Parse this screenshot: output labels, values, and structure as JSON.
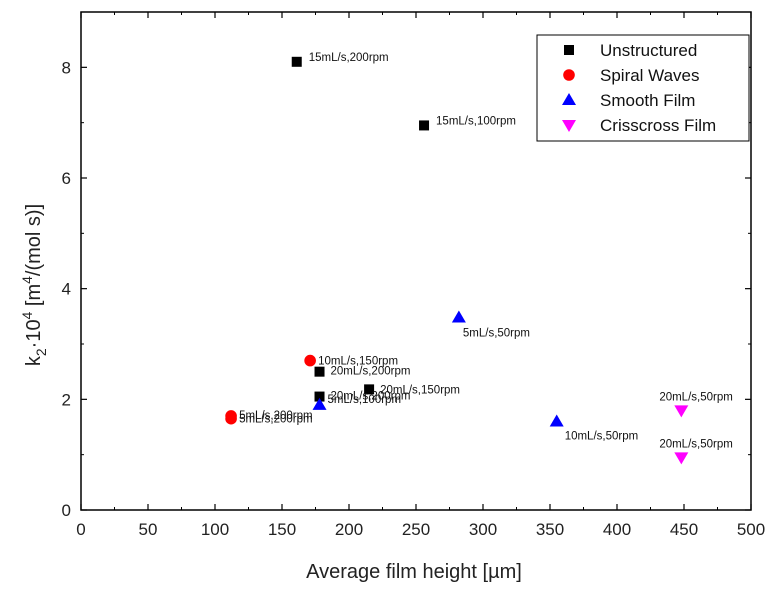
{
  "chart_data": {
    "type": "scatter",
    "xlabel": "Average film height [µm]",
    "ylabel": {
      "prefix": "k",
      "sub": "2",
      "middle": "·10",
      "sup1": "4",
      "open": " [m",
      "sup2": "4",
      "close": "/(mol s)]"
    },
    "xlim": [
      0,
      500
    ],
    "ylim": [
      0,
      9
    ],
    "x_ticks": [
      0,
      50,
      100,
      150,
      200,
      250,
      300,
      350,
      400,
      450,
      500
    ],
    "y_ticks": [
      0,
      2,
      4,
      6,
      8
    ],
    "grid": false,
    "legend_position": "top-right",
    "series": [
      {
        "name": "Unstructured",
        "marker": "square",
        "color": "#000000",
        "points": [
          {
            "x": 161,
            "y": 8.1,
            "label": "15mL/s,200rpm"
          },
          {
            "x": 256,
            "y": 6.95,
            "label": "15mL/s,100rpm"
          },
          {
            "x": 178,
            "y": 2.5,
            "label": "20mL/s,200rpm"
          },
          {
            "x": 215,
            "y": 2.18,
            "label": "20mL/s,150rpm"
          },
          {
            "x": 178,
            "y": 2.05,
            "label": "20mL/s,200rpm"
          }
        ]
      },
      {
        "name": "Spiral Waves",
        "marker": "circle",
        "color": "#ff0000",
        "points": [
          {
            "x": 171,
            "y": 2.7,
            "label": "10mL/s,150rpm"
          },
          {
            "x": 112,
            "y": 1.7,
            "label": "5mL/s,200rpm"
          },
          {
            "x": 112,
            "y": 1.65,
            "label": "5mL/s,200rpm"
          }
        ]
      },
      {
        "name": "Smooth Film",
        "marker": "triangle-up",
        "color": "#0000ff",
        "points": [
          {
            "x": 282,
            "y": 3.48,
            "label": "5mL/s,50rpm"
          },
          {
            "x": 178,
            "y": 1.9,
            "label": "5mL/s,100rpm"
          },
          {
            "x": 355,
            "y": 1.6,
            "label": "10mL/s,50rpm"
          }
        ]
      },
      {
        "name": "Crisscross Film",
        "marker": "triangle-down",
        "color": "#ff00ff",
        "points": [
          {
            "x": 448,
            "y": 1.8,
            "label": "20mL/s,50rpm"
          },
          {
            "x": 448,
            "y": 0.95,
            "label": "20mL/s,50rpm"
          }
        ]
      }
    ]
  }
}
